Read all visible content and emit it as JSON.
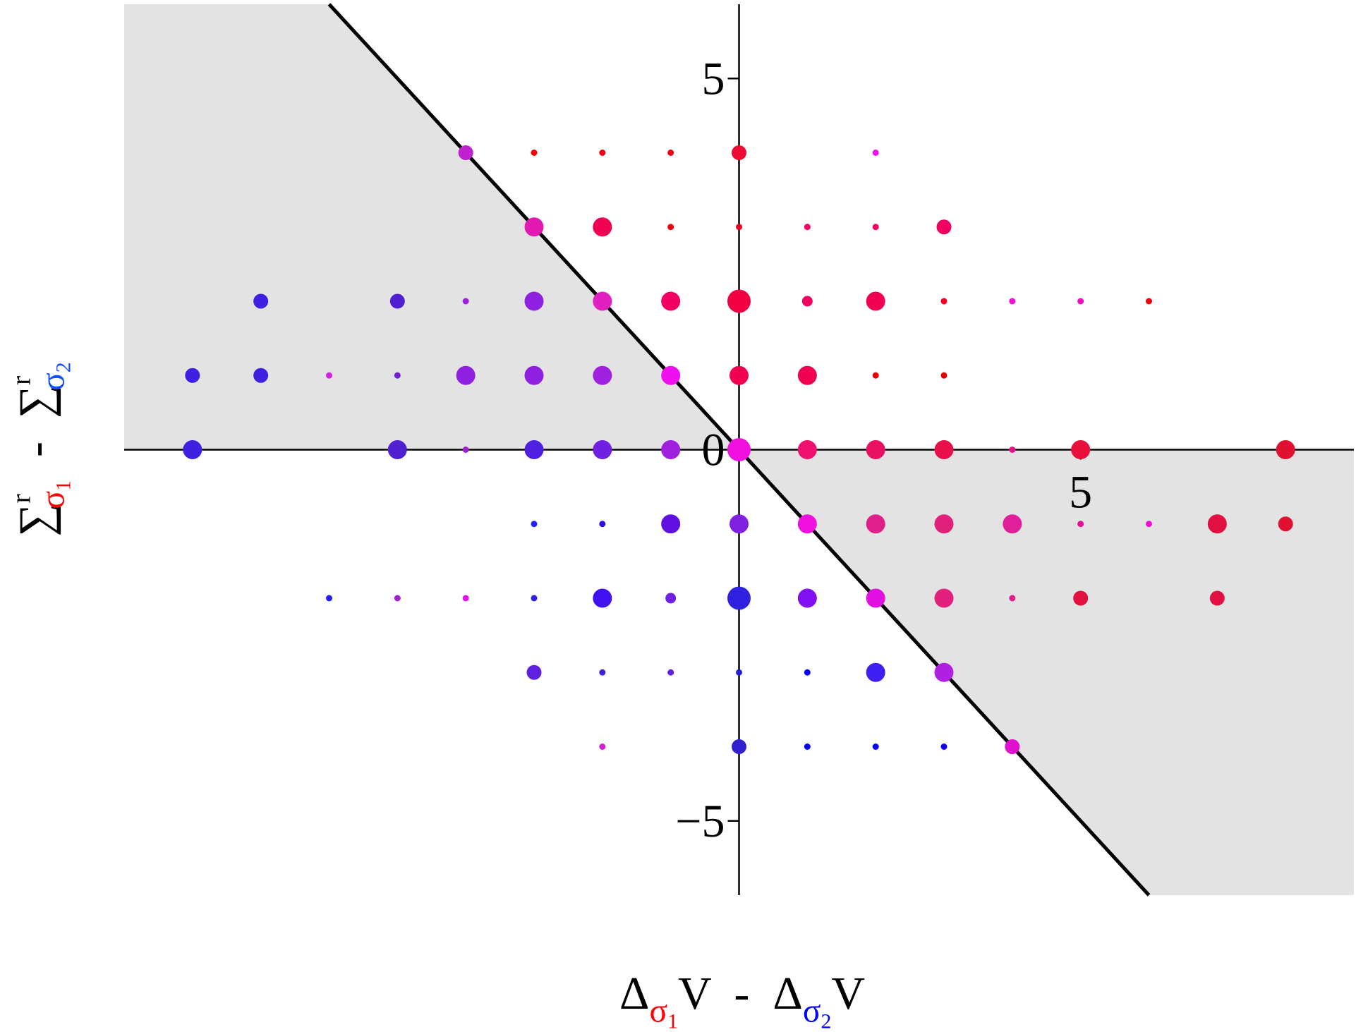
{
  "chart_data": {
    "type": "scatter",
    "xlim": [
      -9,
      9
    ],
    "ylim": [
      -6,
      6
    ],
    "xticks": [
      5
    ],
    "yticks": [
      {
        "value": -5,
        "label": "−5"
      },
      0,
      5
    ],
    "reference_line_color": "#000000",
    "shading_color": "#e3e3e3",
    "xlabel": [
      {
        "text": "Δ"
      },
      {
        "sub": "σ",
        "subsub": "1",
        "color": "#ff0000"
      },
      {
        "text": "V  -  Δ"
      },
      {
        "sub": "σ",
        "subsub": "2",
        "color": "#0000ff"
      },
      {
        "text": "V"
      }
    ],
    "ylabel": [
      {
        "text": "∑",
        "sup": "r",
        "sub": "σ",
        "subsub": "1",
        "color": "#ff0000"
      },
      {
        "text": "  -  "
      },
      {
        "text": "∑",
        "sup": "r",
        "sub": "σ",
        "subsub": "2",
        "color": "#1050ff"
      }
    ],
    "x": [
      -4,
      -3,
      -2,
      -1,
      0,
      2,
      -3,
      -2,
      -1,
      0,
      1,
      2,
      3,
      -7,
      -5,
      -4,
      -3,
      -2,
      -1,
      0,
      1,
      2,
      3,
      4,
      5,
      6,
      -8,
      -7,
      -6,
      -5,
      -4,
      -3,
      -2,
      -1,
      0,
      1,
      2,
      3,
      -8,
      -5,
      -4,
      -3,
      -2,
      -1,
      0,
      1,
      2,
      3,
      4,
      5,
      8,
      -3,
      -2,
      -1,
      0,
      1,
      2,
      3,
      4,
      5,
      6,
      7,
      8,
      -6,
      -5,
      -4,
      -3,
      -2,
      -1,
      0,
      1,
      2,
      3,
      4,
      5,
      7,
      -3,
      -2,
      -1,
      0,
      1,
      2,
      3,
      -2,
      0,
      1,
      2,
      3,
      4
    ],
    "y": [
      4,
      4,
      4,
      4,
      4,
      4,
      3,
      3,
      3,
      3,
      3,
      3,
      3,
      2,
      2,
      2,
      2,
      2,
      2,
      2,
      2,
      2,
      2,
      2,
      2,
      2,
      1,
      1,
      1,
      1,
      1,
      1,
      1,
      1,
      1,
      1,
      1,
      1,
      0,
      0,
      0,
      0,
      0,
      0,
      0,
      0,
      0,
      0,
      0,
      0,
      0,
      -1,
      -1,
      -1,
      -1,
      -1,
      -1,
      -1,
      -1,
      -1,
      -1,
      -1,
      -1,
      -2,
      -2,
      -2,
      -2,
      -2,
      -2,
      -2,
      -2,
      -2,
      -2,
      -2,
      -2,
      -2,
      -3,
      -3,
      -3,
      -3,
      -3,
      -3,
      -3,
      -4,
      -4,
      -4,
      -4,
      -4,
      -4
    ],
    "sizes": [
      3,
      1,
      1,
      1,
      3,
      1,
      4,
      4,
      1,
      1,
      1,
      1,
      3,
      3,
      3,
      1,
      4,
      4,
      4,
      5,
      2,
      4,
      1,
      1,
      1,
      1,
      3,
      3,
      1,
      1,
      4,
      4,
      4,
      4,
      4,
      4,
      1,
      1,
      4,
      4,
      1,
      4,
      4,
      4,
      5,
      4,
      4,
      4,
      1,
      4,
      4,
      1,
      1,
      4,
      4,
      4,
      4,
      4,
      4,
      1,
      1,
      4,
      3,
      1,
      1,
      1,
      1,
      4,
      2,
      5,
      4,
      4,
      4,
      1,
      3,
      3,
      3,
      1,
      1,
      1,
      1,
      4,
      4,
      1,
      3,
      1,
      1,
      1,
      3
    ],
    "colors": [
      "#c020d0",
      "#ff0000",
      "#f00010",
      "#f00010",
      "#ee0a30",
      "#ee10ee",
      "#e01ab0",
      "#f00050",
      "#f00010",
      "#e80020",
      "#f00060",
      "#f00060",
      "#ee0060",
      "#4020e0",
      "#5020d0",
      "#a020e0",
      "#9020e0",
      "#e020c0",
      "#f00060",
      "#f00040",
      "#f00060",
      "#f00050",
      "#f00020",
      "#f010d0",
      "#f010c0",
      "#ee0010",
      "#4020e0",
      "#4020e0",
      "#d020e0",
      "#7020d0",
      "#9020e0",
      "#9020e0",
      "#a020e0",
      "#ee10ee",
      "#f00050",
      "#f00050",
      "#f00000",
      "#e00000",
      "#4020e0",
      "#5020d0",
      "#a020d0",
      "#5020e0",
      "#7020e0",
      "#a020e0",
      "#f010e0",
      "#f01070",
      "#e81060",
      "#e8104a",
      "#e8108a",
      "#e8103a",
      "#e01030",
      "#2020ff",
      "#3010e0",
      "#6010e0",
      "#8020e0",
      "#f010e0",
      "#e0208a",
      "#e0207a",
      "#e0209a",
      "#e01090",
      "#f010d0",
      "#e01040",
      "#e01030",
      "#2020f0",
      "#a020d0",
      "#e010f0",
      "#3020e0",
      "#4010f0",
      "#7020e0",
      "#3020e0",
      "#8010f0",
      "#e010e0",
      "#e0207a",
      "#e0208a",
      "#e01040",
      "#e01040",
      "#6020e0",
      "#4020d0",
      "#6020e0",
      "#2020d0",
      "#0000ff",
      "#4020f0",
      "#b020e0",
      "#d020d0",
      "#3020d0",
      "#0000ff",
      "#0000ff",
      "#1000ee",
      "#e010d0"
    ]
  }
}
